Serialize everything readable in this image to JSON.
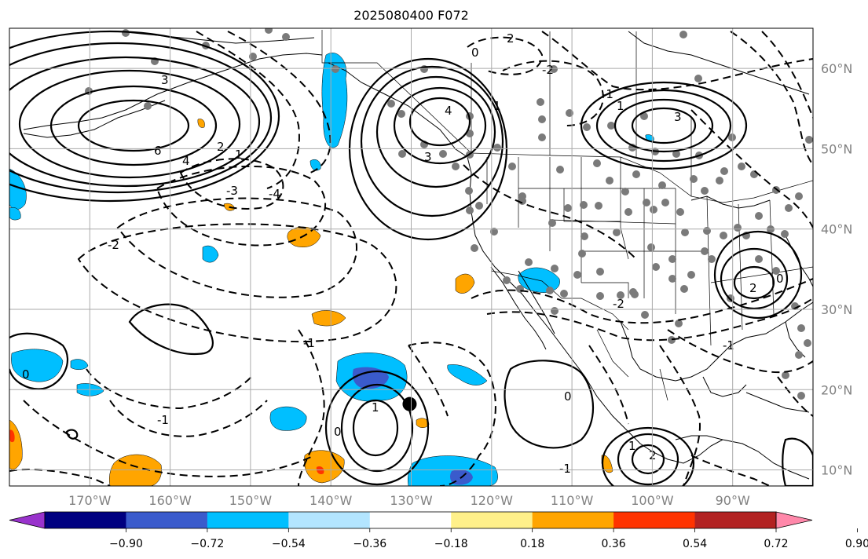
{
  "map": {
    "title": "2025080400 F072",
    "lat_labels": [
      "60°N",
      "50°N",
      "40°N",
      "30°N",
      "20°N",
      "10°N"
    ],
    "lat_values": [
      60,
      50,
      40,
      30,
      20,
      10
    ],
    "lon_labels": [
      "170°W",
      "160°W",
      "150°W",
      "140°W",
      "130°W",
      "120°W",
      "110°W",
      "100°W",
      "90°W"
    ],
    "lon_values": [
      -170,
      -160,
      -150,
      -140,
      -130,
      -120,
      -110,
      -100,
      -90
    ],
    "extent": {
      "lon_min": -180,
      "lon_max": -80,
      "lat_min": 8,
      "lat_max": 65
    },
    "storm_marker": {
      "lon": -130.2,
      "lat": 18.2
    },
    "contour_labels": [
      "6",
      "4",
      "3",
      "2",
      "1",
      "0",
      "-1",
      "-2",
      "-3",
      "-4",
      "4",
      "3",
      "2",
      "1",
      "0",
      "-1",
      "-2",
      "3",
      "2",
      "1",
      "0",
      "-1",
      "-2",
      "1",
      "0",
      "-1",
      "2",
      "1",
      "0",
      "-1"
    ]
  },
  "colorbar": {
    "levels": [
      "−0.90",
      "−0.72",
      "−0.54",
      "−0.36",
      "−0.18",
      "0.18",
      "0.36",
      "0.54",
      "0.72",
      "0.90"
    ],
    "colors": [
      "#9933cc",
      "#000080",
      "#3a5bcc",
      "#00bfff",
      "#b3e5ff",
      "#ffffff",
      "#fff08a",
      "#ffa500",
      "#ff3300",
      "#b22222",
      "#ff88aa"
    ]
  },
  "colors": {
    "grid": "#aaaaaa",
    "gray_dots": "#7a7a7a",
    "orange": "#ffa500",
    "sky": "#00bfff",
    "royal": "#3a5bcc"
  }
}
